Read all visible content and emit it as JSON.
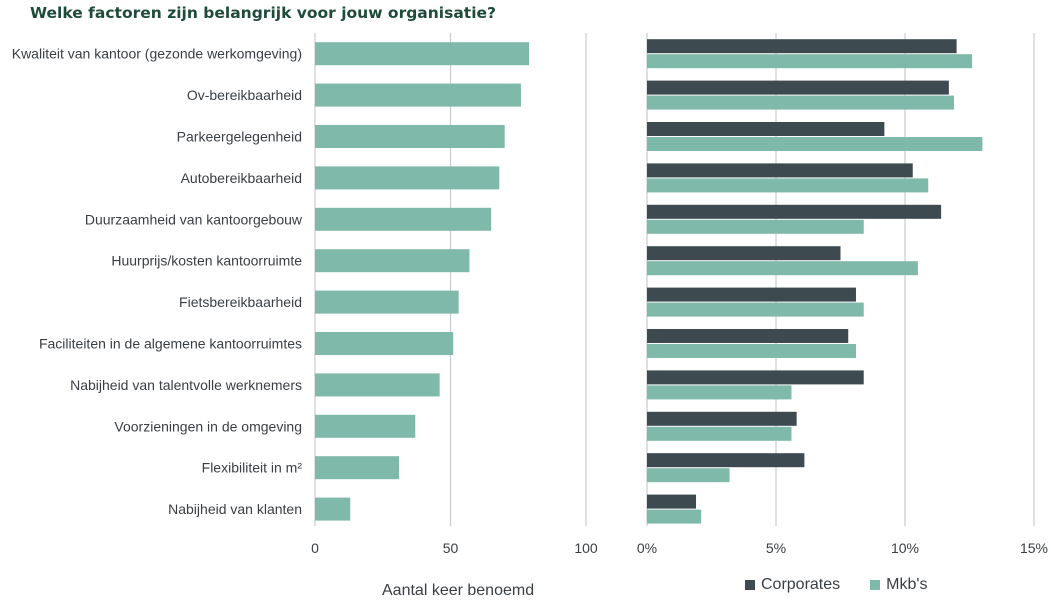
{
  "title": "Welke factoren zijn belangrijk voor jouw organisatie?",
  "colors": {
    "corporates": "#3d4a4f",
    "mkb": "#7fb9aa",
    "grid": "#c8cccf"
  },
  "chart_data": [
    {
      "type": "bar",
      "orientation": "horizontal",
      "title": "",
      "xlabel": "Aantal keer benoemd",
      "ylabel": "",
      "xlim": [
        0,
        100
      ],
      "xticks": [
        "0",
        "50",
        "100"
      ],
      "grid": true,
      "categories": [
        "Kwaliteit van kantoor (gezonde werkomgeving)",
        "Ov-bereikbaarheid",
        "Parkeergelegenheid",
        "Autobereikbaarheid",
        "Duurzaamheid van kantoorgebouw",
        "Huurprijs/kosten kantoorruimte",
        "Fietsbereikbaarheid",
        "Faciliteiten in de algemene kantoorruimtes",
        "Nabijheid van talentvolle werknemers",
        "Voorzieningen in de omgeving",
        "Flexibiliteit in m²",
        "Nabijheid van klanten"
      ],
      "values": [
        79,
        76,
        70,
        68,
        65,
        57,
        53,
        51,
        46,
        37,
        31,
        13
      ]
    },
    {
      "type": "bar",
      "orientation": "horizontal",
      "title": "",
      "xlabel": "",
      "ylabel": "",
      "xlim": [
        0,
        15
      ],
      "xticks": [
        "0%",
        "5%",
        "10%",
        "15%"
      ],
      "grid": true,
      "legend": "bottom",
      "categories": [
        "Kwaliteit van kantoor (gezonde werkomgeving)",
        "Ov-bereikbaarheid",
        "Parkeergelegenheid",
        "Autobereikbaarheid",
        "Duurzaamheid van kantoorgebouw",
        "Huurprijs/kosten kantoorruimte",
        "Fietsbereikbaarheid",
        "Faciliteiten in de algemene kantoorruimtes",
        "Nabijheid van talentvolle werknemers",
        "Voorzieningen in de omgeving",
        "Flexibiliteit in m²",
        "Nabijheid van klanten"
      ],
      "series": [
        {
          "name": "Corporates",
          "values": [
            12.0,
            11.7,
            9.2,
            10.3,
            11.4,
            7.5,
            8.1,
            7.8,
            8.4,
            5.8,
            6.1,
            1.9
          ]
        },
        {
          "name": "Mkb's",
          "values": [
            12.6,
            11.9,
            13.0,
            10.9,
            8.4,
            10.5,
            8.4,
            8.1,
            5.6,
            5.6,
            3.2,
            2.1
          ]
        }
      ]
    }
  ]
}
